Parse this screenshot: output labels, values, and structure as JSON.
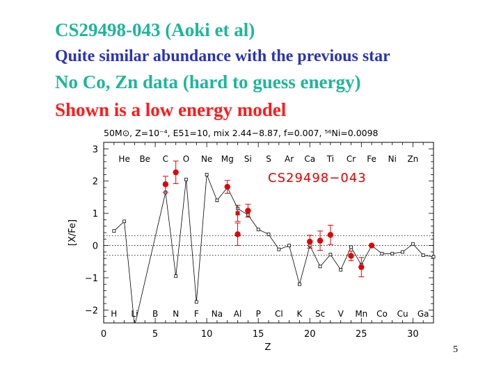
{
  "slide": {
    "title": "CS29498-043 (Aoki et al)",
    "line2": "Quite similar abundance with the previous star",
    "line3": "No Co, Zn data (hard to guess energy)",
    "line4": "Shown is a low energy model",
    "page_number": "5"
  },
  "colors": {
    "teal": "#1fb59a",
    "blue": "#2a33b8",
    "red": "#ff1a1a",
    "obs": "#e00000"
  },
  "chart_data": {
    "type": "scatter",
    "title": "50M⊙, Z=10⁻⁴, E51=10, mix 2.44−8.87, f=0.007, ⁵⁶Ni=0.0098",
    "xlabel": "Z",
    "ylabel": "[X/Fe]",
    "xlim": [
      0,
      32
    ],
    "ylim": [
      -2.4,
      3.2
    ],
    "xticks": [
      0,
      5,
      10,
      15,
      20,
      25,
      30
    ],
    "yticks": [
      3,
      2,
      1,
      0,
      -1,
      -2
    ],
    "reference_lines": [
      0.3,
      0,
      -0.3
    ],
    "star_label": "CS29498−043",
    "top_elements": [
      {
        "z": 2,
        "label": "He"
      },
      {
        "z": 4,
        "label": "Be"
      },
      {
        "z": 6,
        "label": "C"
      },
      {
        "z": 8,
        "label": "O"
      },
      {
        "z": 10,
        "label": "Ne"
      },
      {
        "z": 12,
        "label": "Mg"
      },
      {
        "z": 14,
        "label": "Si"
      },
      {
        "z": 16,
        "label": "S"
      },
      {
        "z": 18,
        "label": "Ar"
      },
      {
        "z": 20,
        "label": "Ca"
      },
      {
        "z": 22,
        "label": "Ti"
      },
      {
        "z": 24,
        "label": "Cr"
      },
      {
        "z": 26,
        "label": "Fe"
      },
      {
        "z": 28,
        "label": "Ni"
      },
      {
        "z": 30,
        "label": "Zn"
      }
    ],
    "bottom_elements": [
      {
        "z": 1,
        "label": "H"
      },
      {
        "z": 3,
        "label": "Li"
      },
      {
        "z": 5,
        "label": "B"
      },
      {
        "z": 7,
        "label": "N"
      },
      {
        "z": 9,
        "label": "F"
      },
      {
        "z": 11,
        "label": "Na"
      },
      {
        "z": 13,
        "label": "Al"
      },
      {
        "z": 15,
        "label": "P"
      },
      {
        "z": 17,
        "label": "Cl"
      },
      {
        "z": 19,
        "label": "K"
      },
      {
        "z": 21,
        "label": "Sc"
      },
      {
        "z": 23,
        "label": "V"
      },
      {
        "z": 25,
        "label": "Mn"
      },
      {
        "z": 27,
        "label": "Co"
      },
      {
        "z": 29,
        "label": "Cu"
      },
      {
        "z": 31,
        "label": "Ga"
      }
    ],
    "model": {
      "name": "low energy model",
      "x": [
        1,
        2,
        3,
        6,
        7,
        8,
        9,
        10,
        11,
        12,
        13,
        14,
        15,
        16,
        17,
        18,
        19,
        20,
        21,
        22,
        23,
        24,
        25,
        26,
        27,
        28,
        29,
        30,
        31,
        32
      ],
      "y": [
        0.45,
        0.75,
        -2.5,
        1.65,
        -0.95,
        2.05,
        -1.75,
        2.2,
        1.4,
        1.8,
        1.15,
        0.95,
        0.5,
        0.35,
        -0.12,
        0.0,
        -1.2,
        0.0,
        -0.65,
        -0.28,
        -0.75,
        -0.05,
        -0.6,
        0.0,
        -0.25,
        -0.25,
        -0.2,
        0.05,
        -0.3,
        -0.35
      ]
    },
    "observed": [
      {
        "z": 6,
        "y": 1.9,
        "err": 0.25
      },
      {
        "z": 7,
        "y": 2.27,
        "err": 0.35
      },
      {
        "z": 12,
        "y": 1.82,
        "err": 0.2
      },
      {
        "z": 13,
        "y": 0.35,
        "err": 0.35
      },
      {
        "z": 14,
        "y": 1.08,
        "err": 0.2
      },
      {
        "z": 20,
        "y": 0.12,
        "err": 0.2
      },
      {
        "z": 21,
        "y": 0.15,
        "err": 0.3
      },
      {
        "z": 22,
        "y": 0.33,
        "err": 0.3
      },
      {
        "z": 24,
        "y": -0.32,
        "err": 0.15
      },
      {
        "z": 25,
        "y": -0.67,
        "err": 0.3
      },
      {
        "z": 26,
        "y": 0.0,
        "err": 0.0
      }
    ],
    "observed_limits": [
      {
        "z": 13,
        "y": 1.0,
        "err": 0.25
      }
    ]
  }
}
